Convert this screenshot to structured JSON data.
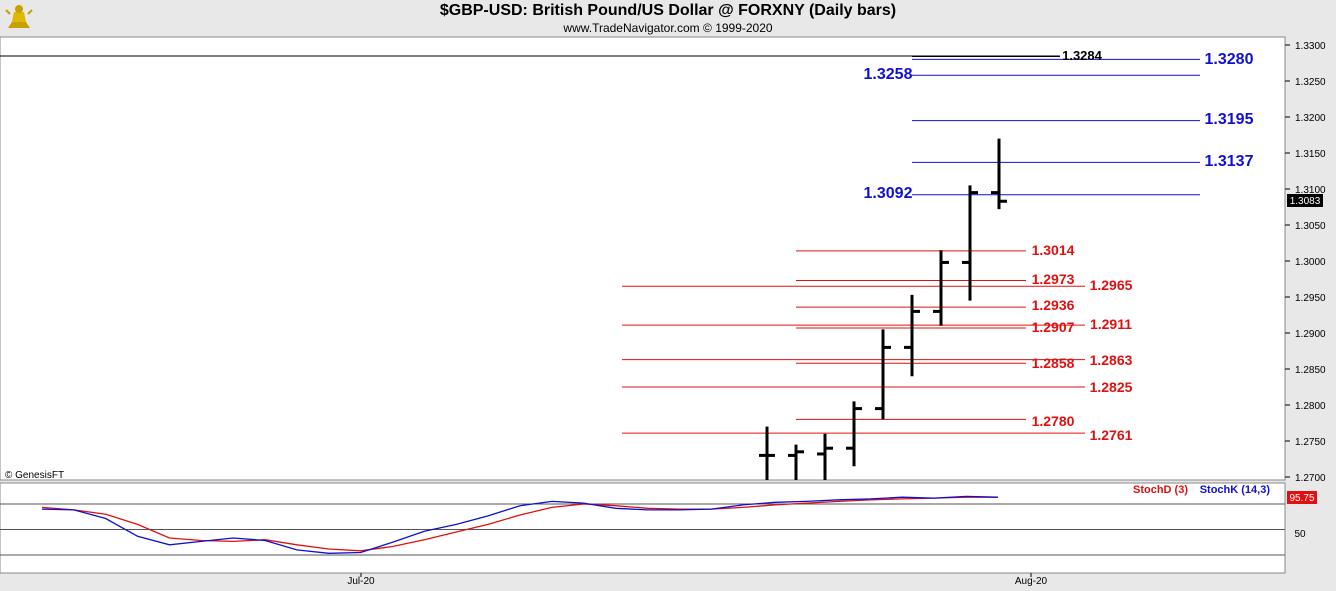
{
  "header": {
    "title": "$GBP-USD:  British Pound/US Dollar @ FORXNY  (Daily bars)",
    "subtitle": "www.TradeNavigator.com © 1999-2020",
    "logo": "golden-bull-logo"
  },
  "copyright": "© GenesisFT",
  "price_panel": {
    "current_price_label": "1.3083",
    "ticks": [
      "1.2700",
      "1.2750",
      "1.2800",
      "1.2850",
      "1.2900",
      "1.2950",
      "1.3000",
      "1.3050",
      "1.3100",
      "1.3150",
      "1.3200",
      "1.3250",
      "1.3300"
    ]
  },
  "stoch_panel": {
    "legend_d": "StochD (3)",
    "legend_k": "StochK (14,3)",
    "value_label": "95.75",
    "tick_label": "50"
  },
  "x_labels": [
    "Jul-20",
    "Aug-20"
  ],
  "colors": {
    "blue_levels": "#1010d0",
    "red_levels": "#e01010",
    "bars": "#000000",
    "stoch_k": "#1010d0",
    "stoch_d": "#e01010"
  },
  "chart_data": {
    "type": "ohlc",
    "ylim": [
      1.2695,
      1.3312
    ],
    "ticks": [
      1.27,
      1.275,
      1.28,
      1.285,
      1.29,
      1.295,
      1.3,
      1.305,
      1.31,
      1.315,
      1.32,
      1.325,
      1.33
    ],
    "bars": [
      {
        "high": 1.277,
        "low": 1.2695,
        "open": 1.273,
        "close": 1.273
      },
      {
        "high": 1.2745,
        "low": 1.2695,
        "open": 1.273,
        "close": 1.2735
      },
      {
        "high": 1.276,
        "low": 1.2695,
        "open": 1.2732,
        "close": 1.274
      },
      {
        "high": 1.2805,
        "low": 1.2715,
        "open": 1.274,
        "close": 1.2795
      },
      {
        "high": 1.2905,
        "low": 1.278,
        "open": 1.2795,
        "close": 1.288
      },
      {
        "high": 1.2953,
        "low": 1.284,
        "open": 1.288,
        "close": 1.293
      },
      {
        "high": 1.3015,
        "low": 1.291,
        "open": 1.293,
        "close": 1.2998
      },
      {
        "high": 1.3105,
        "low": 1.2945,
        "open": 1.2998,
        "close": 1.3095
      },
      {
        "high": 1.317,
        "low": 1.3072,
        "open": 1.3095,
        "close": 1.3083
      }
    ],
    "resistance_levels": [
      {
        "value": 1.3284,
        "color": "black"
      },
      {
        "value": 1.328,
        "color": "blue"
      },
      {
        "value": 1.3258,
        "color": "blue"
      },
      {
        "value": 1.3195,
        "color": "blue"
      },
      {
        "value": 1.3137,
        "color": "blue"
      },
      {
        "value": 1.3092,
        "color": "blue"
      }
    ],
    "support_levels": [
      {
        "value": 1.3014,
        "color": "red"
      },
      {
        "value": 1.2973,
        "color": "red"
      },
      {
        "value": 1.2965,
        "color": "red"
      },
      {
        "value": 1.2936,
        "color": "red"
      },
      {
        "value": 1.2911,
        "color": "red"
      },
      {
        "value": 1.2907,
        "color": "red"
      },
      {
        "value": 1.2863,
        "color": "red"
      },
      {
        "value": 1.2858,
        "color": "red"
      },
      {
        "value": 1.2825,
        "color": "red"
      },
      {
        "value": 1.278,
        "color": "red"
      },
      {
        "value": 1.2761,
        "color": "red"
      }
    ],
    "level_labels": [
      {
        "text": "1.3284",
        "color": "black"
      },
      {
        "text": "1.3280",
        "color": "blue"
      },
      {
        "text": "1.3258",
        "color": "blue"
      },
      {
        "text": "1.3195",
        "color": "blue"
      },
      {
        "text": "1.3137",
        "color": "blue"
      },
      {
        "text": "1.3092",
        "color": "blue"
      },
      {
        "text": "1.3014",
        "color": "red"
      },
      {
        "text": "1.2973",
        "color": "red"
      },
      {
        "text": "1.2965",
        "color": "red"
      },
      {
        "text": "1.2936",
        "color": "red"
      },
      {
        "text": "1.2907",
        "color": "red"
      },
      {
        "text": "1.2911",
        "color": "red"
      },
      {
        "text": "1.2858",
        "color": "red"
      },
      {
        "text": "1.2863",
        "color": "red"
      },
      {
        "text": "1.2825",
        "color": "red"
      },
      {
        "text": "1.2780",
        "color": "red"
      },
      {
        "text": "1.2761",
        "color": "red"
      }
    ],
    "stochastic": {
      "ylim": [
        0,
        100
      ],
      "reference_lines": [
        80,
        50,
        20
      ],
      "stoch_k": [
        74,
        73,
        63,
        42,
        32,
        36,
        40,
        37,
        26,
        22,
        23,
        35,
        48,
        56,
        66,
        78,
        83,
        81,
        75,
        73,
        73,
        74,
        79,
        82,
        83,
        85,
        86,
        88,
        87,
        89,
        88
      ],
      "stoch_d": [
        76,
        73,
        68,
        56,
        40,
        37,
        36,
        38,
        32,
        27,
        25,
        30,
        38,
        47,
        56,
        67,
        76,
        80,
        78,
        75,
        74,
        74,
        76,
        79,
        81,
        83,
        85,
        86,
        87,
        88,
        88
      ]
    }
  }
}
